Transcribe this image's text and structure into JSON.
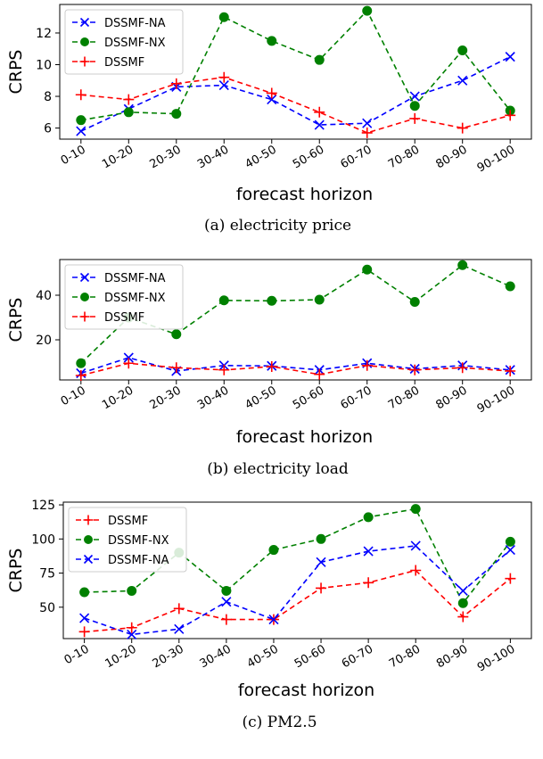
{
  "chart_data": [
    {
      "type": "line",
      "caption": "(a) electricity price",
      "xlabel": "forecast horizon",
      "ylabel": "CRPS",
      "categories": [
        "0-10",
        "10-20",
        "20-30",
        "30-40",
        "40-50",
        "50-60",
        "60-70",
        "70-80",
        "80-90",
        "90-100"
      ],
      "ylim": [
        5.3,
        13.8
      ],
      "yticks": [
        6,
        8,
        10,
        12
      ],
      "legend_position": "top-left",
      "series": [
        {
          "name": "DSSMF-NA",
          "color": "#0000ff",
          "marker": "x",
          "values": [
            5.8,
            7.2,
            8.6,
            8.7,
            7.8,
            6.2,
            6.3,
            8.0,
            9.0,
            10.5
          ]
        },
        {
          "name": "DSSMF-NX",
          "color": "#008000",
          "marker": "o",
          "values": [
            6.5,
            7.0,
            6.9,
            13.0,
            11.5,
            10.3,
            13.4,
            7.4,
            10.9,
            7.1
          ]
        },
        {
          "name": "DSSMF",
          "color": "#ff0000",
          "marker": "+",
          "values": [
            8.1,
            7.8,
            8.8,
            9.2,
            8.2,
            7.0,
            5.7,
            6.6,
            6.0,
            6.8
          ]
        }
      ]
    },
    {
      "type": "line",
      "caption": "(b) electricity load",
      "xlabel": "forecast horizon",
      "ylabel": "CRPS",
      "categories": [
        "0-10",
        "10-20",
        "20-30",
        "30-40",
        "40-50",
        "50-60",
        "60-70",
        "70-80",
        "80-90",
        "90-100"
      ],
      "ylim": [
        2,
        56
      ],
      "yticks": [
        20,
        40
      ],
      "legend_position": "top-left",
      "series": [
        {
          "name": "DSSMF-NA",
          "color": "#0000ff",
          "marker": "x",
          "values": [
            5.0,
            12.0,
            6.0,
            8.5,
            8.3,
            6.5,
            9.5,
            7.0,
            8.5,
            6.5
          ]
        },
        {
          "name": "DSSMF-NX",
          "color": "#008000",
          "marker": "o",
          "values": [
            9.5,
            30.0,
            22.5,
            37.7,
            37.5,
            38.0,
            51.5,
            37.0,
            53.5,
            44.0
          ]
        },
        {
          "name": "DSSMF",
          "color": "#ff0000",
          "marker": "+",
          "values": [
            4.0,
            9.5,
            7.5,
            6.5,
            8.0,
            4.5,
            8.5,
            6.5,
            7.5,
            6.0
          ]
        }
      ]
    },
    {
      "type": "line",
      "caption": "(c) PM2.5",
      "xlabel": "forecast horizon",
      "ylabel": "CRPS",
      "categories": [
        "0-10",
        "10-20",
        "20-30",
        "30-40",
        "40-50",
        "50-60",
        "60-70",
        "70-80",
        "80-90",
        "90-100"
      ],
      "ylim": [
        27,
        127
      ],
      "yticks": [
        50,
        75,
        100,
        125
      ],
      "legend_position": "top-left",
      "series": [
        {
          "name": "DSSMF",
          "color": "#ff0000",
          "marker": "+",
          "values": [
            32,
            35,
            49,
            41,
            41,
            64,
            68,
            77,
            43,
            71
          ]
        },
        {
          "name": "DSSMF-NX",
          "color": "#008000",
          "marker": "o",
          "values": [
            61,
            62,
            90,
            62,
            92,
            100,
            116,
            122,
            53,
            98
          ]
        },
        {
          "name": "DSSMF-NA",
          "color": "#0000ff",
          "marker": "x",
          "values": [
            42,
            30,
            34,
            54,
            41,
            83,
            91,
            95,
            62,
            92
          ]
        }
      ]
    }
  ]
}
